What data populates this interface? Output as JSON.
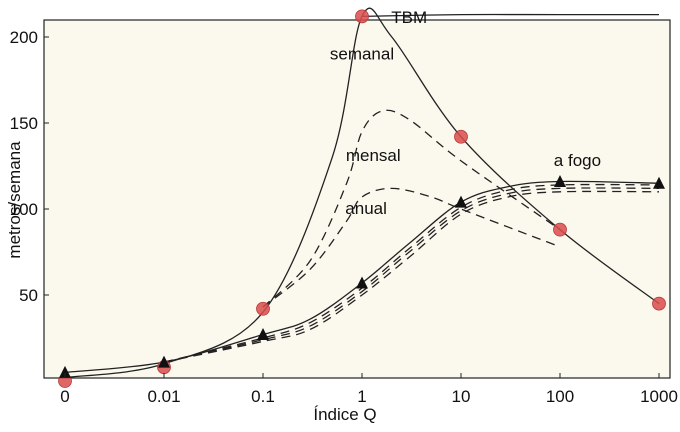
{
  "chart_data": {
    "type": "line",
    "xlabel": "Índice Q",
    "ylabel": "metros/semana",
    "x_scale": "log",
    "x_ticks": [
      "0",
      "0.01",
      "0.1",
      "1",
      "10",
      "100",
      "1000"
    ],
    "y_ticks": [
      50,
      100,
      150,
      200
    ],
    "ylim": [
      0,
      213
    ],
    "grid": false,
    "background": "#fbf9ee",
    "series": [
      {
        "name": "TBM",
        "color": "#222222",
        "dash": "solid",
        "x": [
          "0",
          "0.01",
          "0.1",
          "0.5",
          "1",
          "2",
          "10",
          "100",
          "1000"
        ],
        "y": [
          2,
          10,
          40,
          130,
          212,
          200,
          142,
          88,
          45
        ],
        "markers": {
          "shape": "circle",
          "color": "#d94c4c",
          "x": [
            "0",
            "0.01",
            "0.1",
            "1",
            "10",
            "100",
            "1000"
          ],
          "y": [
            0,
            8,
            42,
            212,
            142,
            88,
            45
          ]
        }
      },
      {
        "name": "semanal",
        "color": "#222222",
        "dash": "solid",
        "x": [
          "1",
          "10",
          "100",
          "1000"
        ],
        "y": [
          212,
          213,
          213,
          213
        ]
      },
      {
        "name": "mensal",
        "color": "#222222",
        "dash": "dashed",
        "x": [
          "0.1",
          "0.3",
          "0.7",
          "1",
          "1.6",
          "3",
          "10",
          "100"
        ],
        "y": [
          43,
          70,
          115,
          145,
          157,
          152,
          128,
          88
        ]
      },
      {
        "name": "anual",
        "color": "#222222",
        "dash": "dashed",
        "x": [
          "0.1",
          "0.3",
          "0.7",
          "1",
          "2",
          "5",
          "10",
          "100"
        ],
        "y": [
          43,
          65,
          93,
          107,
          112,
          107,
          100,
          78
        ]
      },
      {
        "name": "a fogo",
        "color": "#222222",
        "dash": "solid",
        "x": [
          "0",
          "0.01",
          "0.1",
          "0.3",
          "1",
          "3",
          "10",
          "30",
          "100",
          "1000"
        ],
        "y": [
          5,
          11,
          27,
          36,
          57,
          80,
          104,
          113,
          116,
          115
        ],
        "markers": {
          "shape": "triangle",
          "color": "#111111",
          "x": [
            "0",
            "0.01",
            "0.1",
            "1",
            "10",
            "100",
            "1000"
          ],
          "y": [
            5,
            11,
            27,
            57,
            104,
            116,
            115
          ]
        }
      },
      {
        "color": "#222222",
        "dash": "dashed",
        "x": [
          "0.01",
          "0.1",
          "0.3",
          "1",
          "3",
          "10",
          "30",
          "100",
          "1000"
        ],
        "y": [
          11,
          25,
          34,
          54,
          77,
          101,
          111,
          114,
          114
        ]
      },
      {
        "color": "#222222",
        "dash": "dashed",
        "x": [
          "0.01",
          "0.1",
          "0.3",
          "1",
          "3",
          "10",
          "30",
          "100",
          "1000"
        ],
        "y": [
          11,
          24,
          32,
          52,
          75,
          99,
          109,
          112,
          112
        ]
      },
      {
        "color": "#222222",
        "dash": "dashed",
        "x": [
          "0.01",
          "0.1",
          "0.3",
          "1",
          "3",
          "10",
          "30",
          "100",
          "1000"
        ],
        "y": [
          11,
          23,
          30,
          50,
          72,
          97,
          107,
          110,
          110
        ]
      }
    ],
    "annotations": [
      {
        "text": "TBM",
        "x": "3",
        "y": 208,
        "color": "#111111"
      },
      {
        "text": "semanal",
        "x": "1",
        "y": 187,
        "color": "#111111"
      },
      {
        "text": "mensal",
        "x": "1.3",
        "y": 128,
        "color": "#111111"
      },
      {
        "text": "anual",
        "x": "1.1",
        "y": 97,
        "color": "#111111"
      },
      {
        "text": "a fogo",
        "x": "150",
        "y": 125,
        "color": "#555555"
      }
    ]
  }
}
